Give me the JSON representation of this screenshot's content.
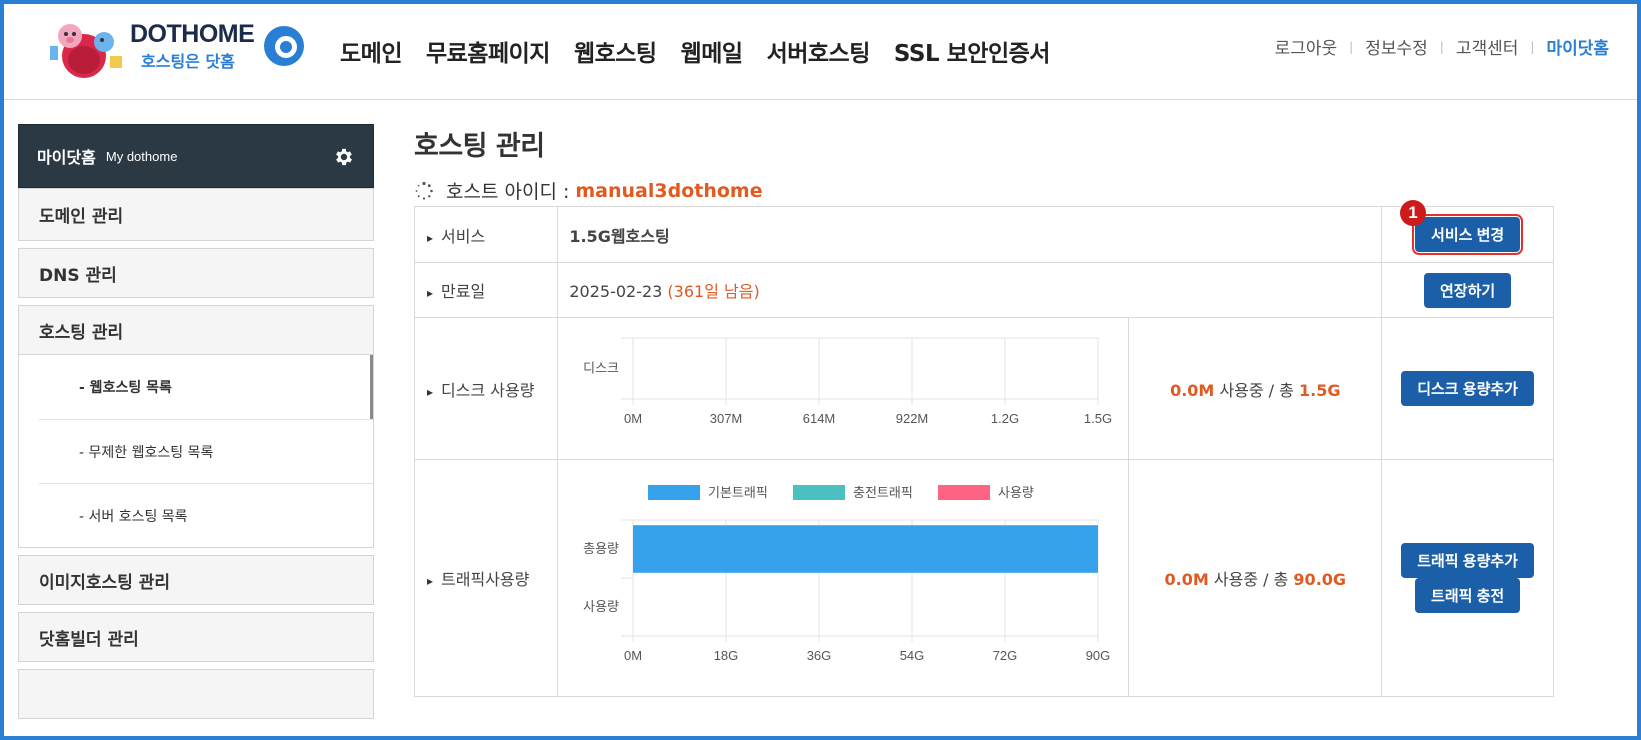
{
  "header": {
    "logo_text": "DOTHOME",
    "logo_sub": "호스팅은 닷홈",
    "nav": [
      "도메인",
      "무료홈페이지",
      "웹호스팅",
      "웹메일",
      "서버호스팅",
      "SSL 보안인증서"
    ],
    "util": [
      "로그아웃",
      "정보수정",
      "고객센터",
      "마이닷홈"
    ]
  },
  "sidebar": {
    "title": "마이닷홈",
    "subtitle": "My dothome",
    "items": [
      "도메인 관리",
      "DNS 관리",
      "호스팅 관리"
    ],
    "sub_items": [
      "- 웹호스팅 목록",
      "- 무제한 웹호스팅 목록",
      "- 서버 호스팅 목록"
    ],
    "items_after": [
      "이미지호스팅 관리",
      "닷홈빌더 관리"
    ]
  },
  "main": {
    "title": "호스팅 관리",
    "host_label": "호스트 아이디 :",
    "host_id": "manual3dothome",
    "rows": {
      "service": {
        "label": "서비스",
        "value": "1.5G웹호스팅",
        "button": "서비스 변경",
        "marker": "1"
      },
      "expiry": {
        "label": "만료일",
        "date": "2025-02-23",
        "remaining": "(361일 남음)",
        "button": "연장하기"
      },
      "disk": {
        "label": "디스크 사용량",
        "used": "0.0M",
        "used_text": "사용중 / 총",
        "total": "1.5G",
        "button": "디스크 용량추가"
      },
      "traffic": {
        "label": "트래픽사용량",
        "used": "0.0M",
        "used_text": "사용중 / 총",
        "total": "90.0G",
        "buttons": [
          "트래픽 용량추가",
          "트래픽 충전"
        ]
      }
    }
  },
  "colors": {
    "accent": "#2a7fd4",
    "button": "#1a5fa8",
    "highlight": "#e05a22",
    "bar_basic": "#36a2eb",
    "bar_charge": "#4bc0c0",
    "bar_usage": "#ff6384"
  },
  "chart_data": [
    {
      "type": "bar",
      "orientation": "horizontal",
      "categories": [
        "디스크"
      ],
      "values": [
        0
      ],
      "xlim": [
        0,
        1.5
      ],
      "x_tick_labels": [
        "0M",
        "307M",
        "614M",
        "922M",
        "1.2G",
        "1.5G"
      ],
      "grid": true
    },
    {
      "type": "bar",
      "orientation": "horizontal",
      "categories": [
        "총용량",
        "사용량"
      ],
      "series": [
        {
          "name": "기본트래픽",
          "values": [
            90,
            0
          ]
        },
        {
          "name": "충전트래픽",
          "values": [
            0,
            0
          ]
        },
        {
          "name": "사용량",
          "values": [
            0,
            0
          ]
        }
      ],
      "xlim": [
        0,
        90
      ],
      "x_tick_labels": [
        "0M",
        "18G",
        "36G",
        "54G",
        "72G",
        "90G"
      ],
      "legend": "top",
      "grid": true
    }
  ]
}
